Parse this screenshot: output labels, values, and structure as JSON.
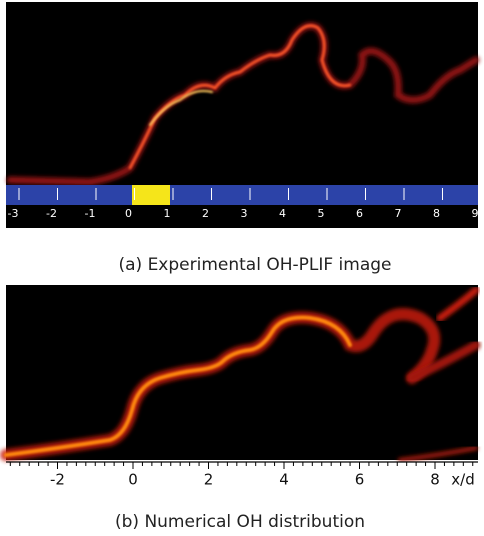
{
  "panel_a": {
    "caption": "(a) Experimental OH-PLIF image",
    "scale_labels": [
      "-3",
      "-2",
      "-1",
      "0",
      "1",
      "2",
      "3",
      "4",
      "5",
      "6",
      "7",
      "8",
      "9"
    ]
  },
  "panel_b": {
    "caption": "(b) Numerical OH distribution",
    "axis_labels": [
      "-2",
      "0",
      "2",
      "4",
      "6",
      "8"
    ],
    "axis_unit": "x/d"
  }
}
